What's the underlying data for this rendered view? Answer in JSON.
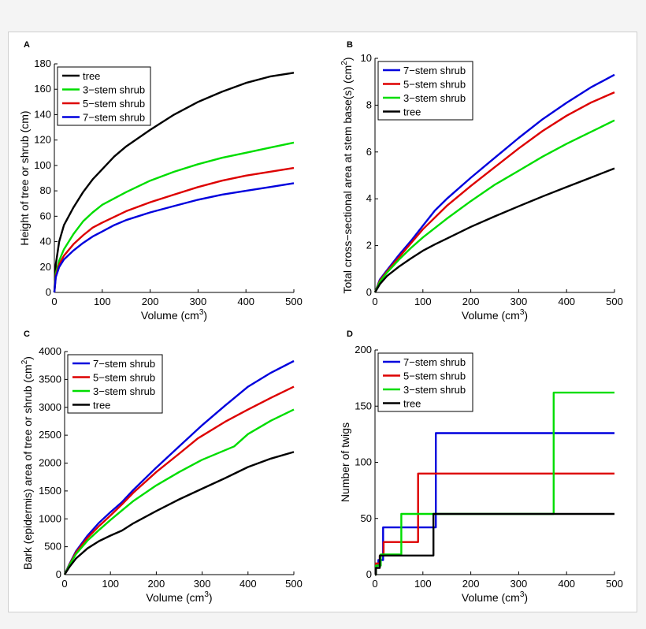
{
  "chart_data": [
    {
      "panel": "A",
      "type": "line",
      "xlabel": "Volume (cm",
      "xlabel_sup": "3",
      "xlabel_suffix": ")",
      "ylabel": "Height of tree or shrub (cm)",
      "xlim": [
        0,
        500
      ],
      "ylim": [
        0,
        180
      ],
      "xticks": [
        0,
        100,
        200,
        300,
        400,
        500
      ],
      "yticks": [
        0,
        20,
        40,
        60,
        80,
        100,
        120,
        140,
        160,
        180
      ],
      "legend_position": "top-left",
      "series": [
        {
          "name": "tree",
          "color": "#000000",
          "points": [
            [
              0,
              0
            ],
            [
              3,
              22
            ],
            [
              10,
              40
            ],
            [
              20,
              53
            ],
            [
              40,
              67
            ],
            [
              60,
              79
            ],
            [
              80,
              89
            ],
            [
              100,
              97
            ],
            [
              125,
              107
            ],
            [
              150,
              115
            ],
            [
              200,
              128
            ],
            [
              250,
              140
            ],
            [
              300,
              150
            ],
            [
              350,
              158
            ],
            [
              400,
              165
            ],
            [
              450,
              170
            ],
            [
              500,
              173
            ]
          ]
        },
        {
          "name": "3−stem shrub",
          "color": "#00dd00",
          "points": [
            [
              0,
              0
            ],
            [
              3,
              15
            ],
            [
              10,
              25
            ],
            [
              20,
              34
            ],
            [
              40,
              46
            ],
            [
              60,
              56
            ],
            [
              80,
              63
            ],
            [
              100,
              69
            ],
            [
              150,
              79
            ],
            [
              200,
              88
            ],
            [
              250,
              95
            ],
            [
              300,
              101
            ],
            [
              350,
              106
            ],
            [
              400,
              110
            ],
            [
              450,
              114
            ],
            [
              500,
              118
            ]
          ]
        },
        {
          "name": "5−stem shrub",
          "color": "#dd0000",
          "points": [
            [
              0,
              0
            ],
            [
              3,
              13
            ],
            [
              10,
              22
            ],
            [
              20,
              29
            ],
            [
              40,
              38
            ],
            [
              60,
              45
            ],
            [
              80,
              51
            ],
            [
              100,
              55
            ],
            [
              150,
              64
            ],
            [
              200,
              71
            ],
            [
              250,
              77
            ],
            [
              300,
              83
            ],
            [
              350,
              88
            ],
            [
              400,
              92
            ],
            [
              450,
              95
            ],
            [
              500,
              98
            ]
          ]
        },
        {
          "name": "7−stem shrub",
          "color": "#0000dd",
          "points": [
            [
              0,
              0
            ],
            [
              3,
              12
            ],
            [
              10,
              20
            ],
            [
              20,
              26
            ],
            [
              40,
              33
            ],
            [
              60,
              39
            ],
            [
              80,
              44
            ],
            [
              100,
              48
            ],
            [
              125,
              53
            ],
            [
              150,
              57
            ],
            [
              200,
              63
            ],
            [
              250,
              68
            ],
            [
              300,
              73
            ],
            [
              350,
              77
            ],
            [
              400,
              80
            ],
            [
              450,
              83
            ],
            [
              500,
              86
            ]
          ]
        }
      ]
    },
    {
      "panel": "B",
      "type": "line",
      "xlabel": "Volume (cm",
      "xlabel_sup": "3",
      "xlabel_suffix": ")",
      "ylabel": "Total cross−sectional area at stem base(s) (cm",
      "ylabel_sup": "2",
      "ylabel_suffix": ")",
      "xlim": [
        0,
        500
      ],
      "ylim": [
        0,
        10
      ],
      "xticks": [
        0,
        100,
        200,
        300,
        400,
        500
      ],
      "yticks": [
        0,
        2,
        4,
        6,
        8,
        10
      ],
      "legend_position": "top-left",
      "series": [
        {
          "name": "7−stem shrub",
          "color": "#0000dd",
          "points": [
            [
              0,
              0
            ],
            [
              10,
              0.55
            ],
            [
              25,
              0.95
            ],
            [
              50,
              1.6
            ],
            [
              75,
              2.2
            ],
            [
              100,
              2.85
            ],
            [
              125,
              3.5
            ],
            [
              150,
              4.0
            ],
            [
              200,
              4.9
            ],
            [
              250,
              5.75
            ],
            [
              300,
              6.6
            ],
            [
              350,
              7.4
            ],
            [
              400,
              8.1
            ],
            [
              450,
              8.75
            ],
            [
              500,
              9.3
            ]
          ]
        },
        {
          "name": "5−stem shrub",
          "color": "#dd0000",
          "points": [
            [
              0,
              0
            ],
            [
              10,
              0.5
            ],
            [
              25,
              0.9
            ],
            [
              50,
              1.5
            ],
            [
              75,
              2.1
            ],
            [
              100,
              2.7
            ],
            [
              125,
              3.2
            ],
            [
              150,
              3.7
            ],
            [
              200,
              4.55
            ],
            [
              250,
              5.35
            ],
            [
              300,
              6.15
            ],
            [
              350,
              6.9
            ],
            [
              400,
              7.55
            ],
            [
              450,
              8.1
            ],
            [
              500,
              8.55
            ]
          ]
        },
        {
          "name": "3−stem shrub",
          "color": "#00dd00",
          "points": [
            [
              0,
              0
            ],
            [
              10,
              0.45
            ],
            [
              25,
              0.85
            ],
            [
              50,
              1.4
            ],
            [
              75,
              1.9
            ],
            [
              100,
              2.35
            ],
            [
              150,
              3.15
            ],
            [
              200,
              3.9
            ],
            [
              250,
              4.6
            ],
            [
              300,
              5.2
            ],
            [
              350,
              5.8
            ],
            [
              400,
              6.35
            ],
            [
              450,
              6.85
            ],
            [
              500,
              7.35
            ]
          ]
        },
        {
          "name": "tree",
          "color": "#000000",
          "points": [
            [
              0,
              0
            ],
            [
              10,
              0.35
            ],
            [
              25,
              0.7
            ],
            [
              50,
              1.1
            ],
            [
              75,
              1.45
            ],
            [
              100,
              1.78
            ],
            [
              125,
              2.05
            ],
            [
              150,
              2.3
            ],
            [
              200,
              2.8
            ],
            [
              250,
              3.25
            ],
            [
              300,
              3.68
            ],
            [
              350,
              4.1
            ],
            [
              400,
              4.5
            ],
            [
              450,
              4.9
            ],
            [
              500,
              5.3
            ]
          ]
        }
      ]
    },
    {
      "panel": "C",
      "type": "line",
      "xlabel": "Volume (cm",
      "xlabel_sup": "3",
      "xlabel_suffix": ")",
      "ylabel": "Bark (epidermis) area of tree or shrub (cm",
      "ylabel_sup": "2",
      "ylabel_suffix": ")",
      "xlim": [
        0,
        500
      ],
      "ylim": [
        0,
        4000
      ],
      "xticks": [
        0,
        100,
        200,
        300,
        400,
        500
      ],
      "yticks": [
        0,
        500,
        1000,
        1500,
        2000,
        2500,
        3000,
        3500,
        4000
      ],
      "legend_position": "top-left",
      "series": [
        {
          "name": "7−stem shrub",
          "color": "#0000dd",
          "points": [
            [
              0,
              0
            ],
            [
              10,
              180
            ],
            [
              25,
              420
            ],
            [
              50,
              700
            ],
            [
              75,
              930
            ],
            [
              100,
              1120
            ],
            [
              125,
              1300
            ],
            [
              150,
              1520
            ],
            [
              200,
              1920
            ],
            [
              250,
              2300
            ],
            [
              300,
              2680
            ],
            [
              350,
              3030
            ],
            [
              400,
              3370
            ],
            [
              450,
              3620
            ],
            [
              500,
              3830
            ]
          ]
        },
        {
          "name": "5−stem shrub",
          "color": "#dd0000",
          "points": [
            [
              0,
              0
            ],
            [
              10,
              170
            ],
            [
              25,
              400
            ],
            [
              50,
              660
            ],
            [
              75,
              870
            ],
            [
              100,
              1060
            ],
            [
              125,
              1260
            ],
            [
              150,
              1470
            ],
            [
              200,
              1840
            ],
            [
              250,
              2170
            ],
            [
              290,
              2440
            ],
            [
              350,
              2740
            ],
            [
              400,
              2960
            ],
            [
              450,
              3170
            ],
            [
              500,
              3370
            ]
          ]
        },
        {
          "name": "3−stem shrub",
          "color": "#00dd00",
          "points": [
            [
              0,
              0
            ],
            [
              10,
              160
            ],
            [
              25,
              370
            ],
            [
              50,
              610
            ],
            [
              75,
              800
            ],
            [
              100,
              980
            ],
            [
              125,
              1150
            ],
            [
              150,
              1320
            ],
            [
              200,
              1600
            ],
            [
              250,
              1840
            ],
            [
              300,
              2060
            ],
            [
              370,
              2300
            ],
            [
              400,
              2520
            ],
            [
              450,
              2760
            ],
            [
              500,
              2960
            ]
          ]
        },
        {
          "name": "tree",
          "color": "#000000",
          "points": [
            [
              0,
              0
            ],
            [
              10,
              130
            ],
            [
              25,
              290
            ],
            [
              50,
              470
            ],
            [
              75,
              600
            ],
            [
              100,
              700
            ],
            [
              125,
              790
            ],
            [
              150,
              920
            ],
            [
              200,
              1140
            ],
            [
              250,
              1350
            ],
            [
              300,
              1540
            ],
            [
              350,
              1730
            ],
            [
              400,
              1930
            ],
            [
              450,
              2080
            ],
            [
              500,
              2200
            ]
          ]
        }
      ]
    },
    {
      "panel": "D",
      "type": "line",
      "xlabel": "Volume (cm",
      "xlabel_sup": "3",
      "xlabel_suffix": ")",
      "ylabel": "Number of twigs",
      "xlim": [
        0,
        500
      ],
      "ylim": [
        0,
        200
      ],
      "xticks": [
        0,
        100,
        200,
        300,
        400,
        500
      ],
      "yticks": [
        0,
        50,
        100,
        150,
        200
      ],
      "legend_position": "top-left",
      "series": [
        {
          "name": "7−stem shrub",
          "color": "#0000dd",
          "points": [
            [
              0,
              0
            ],
            [
              2,
              0
            ],
            [
              2,
              8
            ],
            [
              7,
              8
            ],
            [
              7,
              13
            ],
            [
              17,
              13
            ],
            [
              17,
              42
            ],
            [
              127,
              42
            ],
            [
              127,
              126
            ],
            [
              500,
              126
            ]
          ]
        },
        {
          "name": "5−stem shrub",
          "color": "#dd0000",
          "points": [
            [
              0,
              0
            ],
            [
              2,
              0
            ],
            [
              2,
              10
            ],
            [
              10,
              10
            ],
            [
              10,
              17
            ],
            [
              18,
              17
            ],
            [
              18,
              29
            ],
            [
              90,
              29
            ],
            [
              90,
              90
            ],
            [
              500,
              90
            ]
          ]
        },
        {
          "name": "3−stem shrub",
          "color": "#00dd00",
          "points": [
            [
              0,
              0
            ],
            [
              2,
              0
            ],
            [
              2,
              8
            ],
            [
              12,
              8
            ],
            [
              12,
              18
            ],
            [
              55,
              18
            ],
            [
              55,
              54
            ],
            [
              373,
              54
            ],
            [
              373,
              162
            ],
            [
              500,
              162
            ]
          ]
        },
        {
          "name": "tree",
          "color": "#000000",
          "points": [
            [
              0,
              0
            ],
            [
              2,
              0
            ],
            [
              2,
              6
            ],
            [
              10,
              6
            ],
            [
              10,
              17
            ],
            [
              122,
              17
            ],
            [
              122,
              54
            ],
            [
              500,
              54
            ]
          ]
        }
      ]
    }
  ]
}
